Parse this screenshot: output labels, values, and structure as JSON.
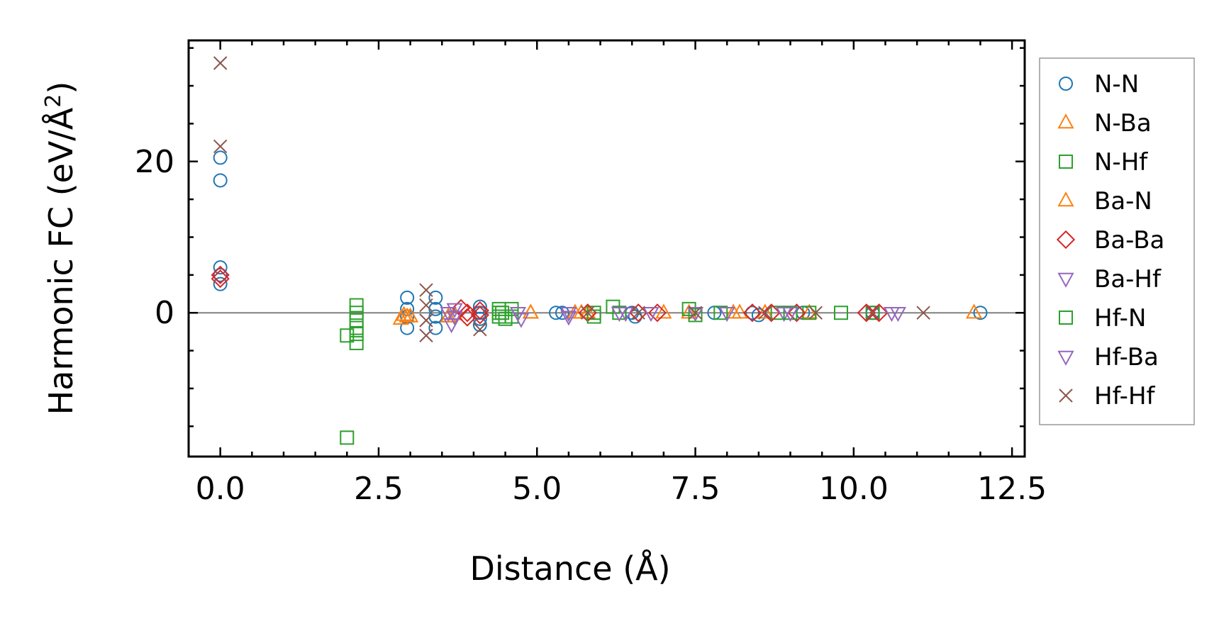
{
  "chart_data": {
    "type": "scatter",
    "title": "",
    "xlabel": "Distance (Å)",
    "ylabel_main": "Harmonic FC (eV/Å",
    "ylabel_sup": "2",
    "ylabel_end": ")",
    "xlim": [
      -0.5,
      12.7
    ],
    "ylim": [
      -19,
      36
    ],
    "xticks": [
      0.0,
      2.5,
      5.0,
      7.5,
      10.0,
      12.5
    ],
    "xtick_labels": [
      "0.0",
      "2.5",
      "5.0",
      "7.5",
      "10.0",
      "12.5"
    ],
    "yticks": [
      0,
      20
    ],
    "ytick_labels": [
      "0",
      "20"
    ],
    "x_minor_step": 0.5,
    "y_minor_step": 5,
    "zero_line": true,
    "legend_position": "outside-right",
    "series": [
      {
        "name": "N-N",
        "marker": "circle",
        "color": "#1f77b4",
        "points": [
          [
            0,
            20.5
          ],
          [
            0,
            17.5
          ],
          [
            0,
            6
          ],
          [
            0,
            5
          ],
          [
            0,
            3.8
          ],
          [
            2.95,
            2
          ],
          [
            2.95,
            0.5
          ],
          [
            2.95,
            -0.5
          ],
          [
            2.95,
            -2
          ],
          [
            3.4,
            2
          ],
          [
            3.4,
            0.5
          ],
          [
            3.4,
            -0.5
          ],
          [
            3.4,
            -2
          ],
          [
            4.1,
            0.8
          ],
          [
            4.1,
            0
          ],
          [
            4.1,
            -0.8
          ],
          [
            4.1,
            -1.6
          ],
          [
            5.3,
            0
          ],
          [
            5.4,
            0
          ],
          [
            6.5,
            0
          ],
          [
            6.55,
            -0.5
          ],
          [
            7.8,
            0
          ],
          [
            8.4,
            0
          ],
          [
            8.5,
            -0.3
          ],
          [
            9.2,
            0
          ],
          [
            10.3,
            0
          ],
          [
            12.0,
            0
          ]
        ]
      },
      {
        "name": "N-Ba",
        "marker": "triangle-up",
        "color": "#ff7f0e",
        "points": [
          [
            2.85,
            -0.8
          ],
          [
            2.9,
            -0.3
          ],
          [
            3.0,
            -0.5
          ],
          [
            3.6,
            -0.5
          ],
          [
            3.7,
            -0.2
          ],
          [
            4.9,
            0
          ],
          [
            5.6,
            0
          ],
          [
            5.8,
            0
          ],
          [
            7.4,
            0
          ],
          [
            8.1,
            0
          ],
          [
            8.6,
            0
          ],
          [
            9.3,
            0
          ],
          [
            11.9,
            0
          ]
        ]
      },
      {
        "name": "N-Hf",
        "marker": "square",
        "color": "#2ca02c",
        "points": [
          [
            2.0,
            -3
          ],
          [
            2.0,
            -16.5
          ],
          [
            2.15,
            1
          ],
          [
            2.15,
            0
          ],
          [
            2.15,
            -1
          ],
          [
            2.15,
            -2
          ],
          [
            2.15,
            -2.8
          ],
          [
            2.15,
            -4
          ],
          [
            4.4,
            0.5
          ],
          [
            4.4,
            0
          ],
          [
            4.4,
            -0.5
          ],
          [
            4.6,
            0.5
          ],
          [
            4.6,
            -0.5
          ],
          [
            5.9,
            0
          ],
          [
            6.2,
            0.8
          ],
          [
            6.3,
            0
          ],
          [
            7.4,
            0.5
          ],
          [
            7.5,
            -0.3
          ],
          [
            8.8,
            0
          ],
          [
            9.3,
            0
          ],
          [
            9.8,
            0
          ],
          [
            10.3,
            0
          ]
        ]
      },
      {
        "name": "Ba-N",
        "marker": "triangle-up",
        "color": "#ff7f0e",
        "points": [
          [
            2.95,
            -0.5
          ],
          [
            3.6,
            -0.5
          ],
          [
            4.9,
            0
          ],
          [
            5.7,
            0
          ],
          [
            7.0,
            0
          ],
          [
            8.2,
            0
          ]
        ]
      },
      {
        "name": "Ba-Ba",
        "marker": "diamond",
        "color": "#d62728",
        "points": [
          [
            0,
            5
          ],
          [
            0,
            4.5
          ],
          [
            3.8,
            0.6
          ],
          [
            3.9,
            0
          ],
          [
            3.9,
            -0.6
          ],
          [
            4.1,
            0.3
          ],
          [
            4.1,
            -0.3
          ],
          [
            5.8,
            0
          ],
          [
            6.6,
            0
          ],
          [
            6.9,
            0
          ],
          [
            8.4,
            0
          ],
          [
            8.7,
            0
          ],
          [
            9.1,
            0
          ],
          [
            10.2,
            0
          ],
          [
            10.4,
            0
          ]
        ]
      },
      {
        "name": "Ba-Hf",
        "marker": "triangle-down",
        "color": "#9467bd",
        "points": [
          [
            3.7,
            0.5
          ],
          [
            3.7,
            -0.5
          ],
          [
            3.65,
            -1.5
          ],
          [
            4.7,
            0
          ],
          [
            4.75,
            -0.8
          ],
          [
            5.5,
            0
          ],
          [
            6.3,
            0
          ],
          [
            6.8,
            0
          ],
          [
            7.5,
            0
          ],
          [
            8.9,
            0
          ],
          [
            10.6,
            0
          ]
        ]
      },
      {
        "name": "Hf-N",
        "marker": "square",
        "color": "#2ca02c",
        "points": [
          [
            4.45,
            0
          ],
          [
            4.5,
            -0.8
          ],
          [
            5.9,
            -0.5
          ],
          [
            7.9,
            0
          ],
          [
            9.0,
            0
          ]
        ]
      },
      {
        "name": "Hf-Ba",
        "marker": "triangle-down",
        "color": "#9467bd",
        "points": [
          [
            3.6,
            0
          ],
          [
            3.7,
            -0.5
          ],
          [
            5.5,
            -0.5
          ],
          [
            6.4,
            0
          ],
          [
            8.0,
            0
          ],
          [
            9.0,
            0
          ],
          [
            10.7,
            0
          ]
        ]
      },
      {
        "name": "Hf-Hf",
        "marker": "x",
        "color": "#8c564b",
        "points": [
          [
            0,
            33
          ],
          [
            0,
            22
          ],
          [
            3.25,
            3
          ],
          [
            3.25,
            1
          ],
          [
            3.25,
            -1
          ],
          [
            3.25,
            -3
          ],
          [
            4.1,
            -2.2
          ],
          [
            5.8,
            0
          ],
          [
            6.6,
            0
          ],
          [
            7.5,
            0
          ],
          [
            8.6,
            0
          ],
          [
            9.4,
            0
          ],
          [
            10.3,
            0
          ],
          [
            11.1,
            0
          ]
        ]
      }
    ]
  }
}
